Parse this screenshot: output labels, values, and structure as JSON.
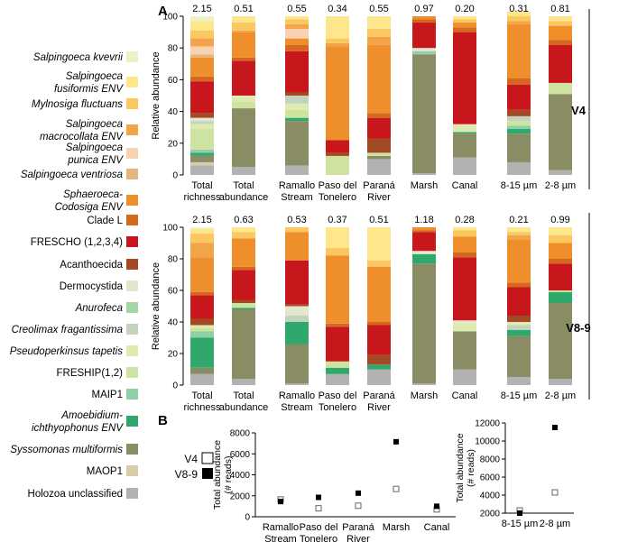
{
  "panel_labels": {
    "a": "A",
    "b": "B"
  },
  "legend": [
    {
      "label": "Salpingoeca kvevrii",
      "color": "#f0efc6",
      "italic": true
    },
    {
      "label": "Salpingoeca fusiformis ENV",
      "color": "#fde68c",
      "italic": true
    },
    {
      "label": "Mylnosiga fluctuans",
      "color": "#fbc75f",
      "italic": true
    },
    {
      "label": "Salpingoeca macrocollata ENV",
      "color": "#f3a34a",
      "italic": true
    },
    {
      "label": "Salpingoeca punica ENV",
      "color": "#f9d2b2",
      "italic": true
    },
    {
      "label": "Salpingoeca ventriosa",
      "color": "#e6b47f",
      "italic": true
    },
    {
      "label": "Sphaeroeca-Codosiga ENV",
      "color": "#ee8f2b",
      "italic": true
    },
    {
      "label": "Clade L",
      "color": "#d5681e",
      "italic": false
    },
    {
      "label": "FRESCHO (1,2,3,4)",
      "color": "#c7161c",
      "italic": false
    },
    {
      "label": "Acanthoecida",
      "color": "#a34a24",
      "italic": false
    },
    {
      "label": "Dermocystida",
      "color": "#e2e6cb",
      "italic": false
    },
    {
      "label": "Anurofeca",
      "color": "#a6d6a6",
      "italic": true
    },
    {
      "label": "Creolimax fragantissima",
      "color": "#c4d3c0",
      "italic": true
    },
    {
      "label": "Pseudoperkinsus tapetis",
      "color": "#dfeaae",
      "italic": true
    },
    {
      "label": "FRESHIP(1,2)",
      "color": "#cfe3a0",
      "italic": false
    },
    {
      "label": "MAIP1",
      "color": "#8fcfa8",
      "italic": false
    },
    {
      "label": "Amoebidium-ichthyophonus ENV",
      "color": "#2ea86b",
      "italic": true
    },
    {
      "label": "Syssomonas multiformis",
      "color": "#8a8c63",
      "italic": true
    },
    {
      "label": "MAOP1",
      "color": "#d8ccaa",
      "italic": false
    },
    {
      "label": "Holozoa unclassified",
      "color": "#b2b2b2",
      "italic": false
    }
  ],
  "chart_data": [
    {
      "type": "stacked-bar",
      "panel": "V4",
      "ylabel": "Relative abundance",
      "ylim": [
        0,
        100
      ],
      "yticks": [
        0,
        20,
        40,
        60,
        80,
        100
      ],
      "categories": [
        "Total richness",
        "Total abundance",
        "Ramallo Stream",
        "Paso del Tonelero",
        "Paraná River",
        "Marsh",
        "Canal",
        "8-15 µm",
        "2-8 µm"
      ],
      "top_values": [
        "2.15",
        "0.51",
        "0.55",
        "0.34",
        "0.55",
        "0.97",
        "0.20",
        "0.31",
        "0.81"
      ],
      "bars": [
        [
          [
            "Holozoa unclassified",
            6
          ],
          [
            "MAOP1",
            2
          ],
          [
            "Syssomonas multiformis",
            4
          ],
          [
            "Amoebidium-ichthyophonus ENV",
            2
          ],
          [
            "MAIP1",
            2
          ],
          [
            "FRESHIP(1,2)",
            13
          ],
          [
            "Pseudoperkinsus tapetis",
            3
          ],
          [
            "Creolimax fragantissima",
            2
          ],
          [
            "Dermocystida",
            2
          ],
          [
            "Acanthoecida",
            3
          ],
          [
            "FRESCHO (1,2,3,4)",
            20
          ],
          [
            "Clade L",
            3
          ],
          [
            "Sphaeroeca-Codosiga ENV",
            12
          ],
          [
            "Salpingoeca ventriosa",
            2
          ],
          [
            "Salpingoeca punica ENV",
            5
          ],
          [
            "Salpingoeca macrocollata ENV",
            5
          ],
          [
            "Mylnosiga fluctuans",
            5
          ],
          [
            "Salpingoeca fusiformis ENV",
            6
          ],
          [
            "Salpingoeca kvevrii",
            3
          ]
        ],
        [
          [
            "Holozoa unclassified",
            5
          ],
          [
            "Syssomonas multiformis",
            37
          ],
          [
            "FRESHIP(1,2)",
            4
          ],
          [
            "Pseudoperkinsus tapetis",
            3
          ],
          [
            "Dermocystida",
            1
          ],
          [
            "FRESCHO (1,2,3,4)",
            22
          ],
          [
            "Clade L",
            2
          ],
          [
            "Sphaeroeca-Codosiga ENV",
            16
          ],
          [
            "Salpingoeca macrocollata ENV",
            1
          ],
          [
            "Mylnosiga fluctuans",
            5
          ],
          [
            "Salpingoeca fusiformis ENV",
            4
          ]
        ],
        [
          [
            "Holozoa unclassified",
            6
          ],
          [
            "Syssomonas multiformis",
            28
          ],
          [
            "Amoebidium-ichthyophonus ENV",
            2
          ],
          [
            "FRESHIP(1,2)",
            5
          ],
          [
            "Pseudoperkinsus tapetis",
            4
          ],
          [
            "Creolimax fragantissima",
            5
          ],
          [
            "Acanthoecida",
            2
          ],
          [
            "FRESCHO (1,2,3,4)",
            26
          ],
          [
            "Clade L",
            4
          ],
          [
            "Sphaeroeca-Codosiga ENV",
            4
          ],
          [
            "Salpingoeca punica ENV",
            6
          ],
          [
            "Salpingoeca macrocollata ENV",
            3
          ],
          [
            "Mylnosiga fluctuans",
            3
          ],
          [
            "Salpingoeca fusiformis ENV",
            2
          ]
        ],
        [
          [
            "FRESHIP(1,2)",
            12
          ],
          [
            "Acanthoecida",
            2
          ],
          [
            "FRESCHO (1,2,3,4)",
            8
          ],
          [
            "Sphaeroeca-Codosiga ENV",
            59
          ],
          [
            "Salpingoeca macrocollata ENV",
            2
          ],
          [
            "Mylnosiga fluctuans",
            3
          ],
          [
            "Salpingoeca fusiformis ENV",
            14
          ]
        ],
        [
          [
            "Holozoa unclassified",
            10
          ],
          [
            "Syssomonas multiformis",
            2
          ],
          [
            "FRESHIP(1,2)",
            2
          ],
          [
            "Acanthoecida",
            9
          ],
          [
            "FRESCHO (1,2,3,4)",
            13
          ],
          [
            "Clade L",
            3
          ],
          [
            "Sphaeroeca-Codosiga ENV",
            43
          ],
          [
            "Salpingoeca macrocollata ENV",
            5
          ],
          [
            "Mylnosiga fluctuans",
            5
          ],
          [
            "Salpingoeca fusiformis ENV",
            8
          ]
        ],
        [
          [
            "Holozoa unclassified",
            1
          ],
          [
            "Syssomonas multiformis",
            75
          ],
          [
            "MAIP1",
            2
          ],
          [
            "Dermocystida",
            2
          ],
          [
            "FRESCHO (1,2,3,4)",
            16
          ],
          [
            "Clade L",
            2
          ],
          [
            "Sphaeroeca-Codosiga ENV",
            2
          ]
        ],
        [
          [
            "Holozoa unclassified",
            11
          ],
          [
            "Syssomonas multiformis",
            15
          ],
          [
            "Amoebidium-ichthyophonus ENV",
            1
          ],
          [
            "Pseudoperkinsus tapetis",
            4
          ],
          [
            "Dermocystida",
            1
          ],
          [
            "FRESCHO (1,2,3,4)",
            58
          ],
          [
            "Clade L",
            3
          ],
          [
            "Sphaeroeca-Codosiga ENV",
            3
          ],
          [
            "Mylnosiga fluctuans",
            2
          ],
          [
            "Salpingoeca fusiformis ENV",
            2
          ]
        ],
        [
          [
            "Holozoa unclassified",
            8
          ],
          [
            "Syssomonas multiformis",
            18
          ],
          [
            "Amoebidium-ichthyophonus ENV",
            3
          ],
          [
            "MAIP1",
            2
          ],
          [
            "FRESHIP(1,2)",
            3
          ],
          [
            "Creolimax fragantissima",
            3
          ],
          [
            "Acanthoecida",
            4
          ],
          [
            "FRESCHO (1,2,3,4)",
            16
          ],
          [
            "Clade L",
            4
          ],
          [
            "Sphaeroeca-Codosiga ENV",
            34
          ],
          [
            "Salpingoeca macrocollata ENV",
            2
          ],
          [
            "Mylnosiga fluctuans",
            3
          ],
          [
            "Salpingoeca fusiformis ENV",
            3
          ]
        ],
        [
          [
            "Holozoa unclassified",
            3
          ],
          [
            "Syssomonas multiformis",
            48
          ],
          [
            "FRESHIP(1,2)",
            7
          ],
          [
            "FRESCHO (1,2,3,4)",
            24
          ],
          [
            "Clade L",
            3
          ],
          [
            "Sphaeroeca-Codosiga ENV",
            9
          ],
          [
            "Mylnosiga fluctuans",
            3
          ],
          [
            "Salpingoeca fusiformis ENV",
            3
          ]
        ]
      ]
    },
    {
      "type": "stacked-bar",
      "panel": "V8-9",
      "ylabel": "Relative abundance",
      "ylim": [
        0,
        100
      ],
      "yticks": [
        0,
        20,
        40,
        60,
        80,
        100
      ],
      "categories": [
        "Total richness",
        "Total abundance",
        "Ramallo Stream",
        "Paso del Tonelero",
        "Paraná River",
        "Marsh",
        "Canal",
        "8-15 µm",
        "2-8 µm"
      ],
      "top_values": [
        "2.15",
        "0.63",
        "0.53",
        "0.37",
        "0.51",
        "1.18",
        "0.28",
        "0.21",
        "0.99"
      ],
      "bars": [
        [
          [
            "Holozoa unclassified",
            7
          ],
          [
            "Syssomonas multiformis",
            4
          ],
          [
            "Amoebidium-ichthyophonus ENV",
            19
          ],
          [
            "MAIP1",
            4
          ],
          [
            "FRESHIP(1,2)",
            2
          ],
          [
            "Pseudoperkinsus tapetis",
            2
          ],
          [
            "Acanthoecida",
            4
          ],
          [
            "FRESCHO (1,2,3,4)",
            15
          ],
          [
            "Clade L",
            2
          ],
          [
            "Sphaeroeca-Codosiga ENV",
            22
          ],
          [
            "Salpingoeca macrocollata ENV",
            9
          ],
          [
            "Mylnosiga fluctuans",
            6
          ],
          [
            "Salpingoeca fusiformis ENV",
            3
          ],
          [
            "Salpingoeca kvevrii",
            1
          ]
        ],
        [
          [
            "Holozoa unclassified",
            4
          ],
          [
            "Syssomonas multiformis",
            44
          ],
          [
            "Amoebidium-ichthyophonus ENV",
            1
          ],
          [
            "FRESHIP(1,2)",
            3
          ],
          [
            "Acanthoecida",
            2
          ],
          [
            "FRESCHO (1,2,3,4)",
            19
          ],
          [
            "Clade L",
            2
          ],
          [
            "Sphaeroeca-Codosiga ENV",
            18
          ],
          [
            "Mylnosiga fluctuans",
            4
          ],
          [
            "Salpingoeca fusiformis ENV",
            3
          ]
        ],
        [
          [
            "Holozoa unclassified",
            1
          ],
          [
            "Syssomonas multiformis",
            25
          ],
          [
            "Amoebidium-ichthyophonus ENV",
            14
          ],
          [
            "Creolimax fragantissima",
            4
          ],
          [
            "Dermocystida",
            6
          ],
          [
            "Acanthoecida",
            1
          ],
          [
            "FRESCHO (1,2,3,4)",
            28
          ],
          [
            "Sphaeroeca-Codosiga ENV",
            18
          ],
          [
            "Mylnosiga fluctuans",
            3
          ]
        ],
        [
          [
            "Holozoa unclassified",
            7
          ],
          [
            "Amoebidium-ichthyophonus ENV",
            4
          ],
          [
            "FRESHIP(1,2)",
            4
          ],
          [
            "FRESCHO (1,2,3,4)",
            22
          ],
          [
            "Clade L",
            2
          ],
          [
            "Sphaeroeca-Codosiga ENV",
            43
          ],
          [
            "Mylnosiga fluctuans",
            5
          ],
          [
            "Salpingoeca fusiformis ENV",
            13
          ]
        ],
        [
          [
            "Holozoa unclassified",
            10
          ],
          [
            "Amoebidium-ichthyophonus ENV",
            3
          ],
          [
            "Acanthoecida",
            6
          ],
          [
            "FRESCHO (1,2,3,4)",
            19
          ],
          [
            "Clade L",
            2
          ],
          [
            "Sphaeroeca-Codosiga ENV",
            35
          ],
          [
            "Mylnosiga fluctuans",
            4
          ],
          [
            "Salpingoeca fusiformis ENV",
            21
          ]
        ],
        [
          [
            "Holozoa unclassified",
            1
          ],
          [
            "Syssomonas multiformis",
            76
          ],
          [
            "Amoebidium-ichthyophonus ENV",
            6
          ],
          [
            "Dermocystida",
            2
          ],
          [
            "FRESCHO (1,2,3,4)",
            12
          ],
          [
            "Clade L",
            1
          ],
          [
            "Sphaeroeca-Codosiga ENV",
            2
          ]
        ],
        [
          [
            "Holozoa unclassified",
            10
          ],
          [
            "Syssomonas multiformis",
            24
          ],
          [
            "Pseudoperkinsus tapetis",
            5
          ],
          [
            "Dermocystida",
            2
          ],
          [
            "FRESCHO (1,2,3,4)",
            40
          ],
          [
            "Clade L",
            3
          ],
          [
            "Sphaeroeca-Codosiga ENV",
            10
          ],
          [
            "Mylnosiga fluctuans",
            4
          ],
          [
            "Salpingoeca fusiformis ENV",
            2
          ]
        ],
        [
          [
            "Holozoa unclassified",
            5
          ],
          [
            "Syssomonas multiformis",
            26
          ],
          [
            "Amoebidium-ichthyophonus ENV",
            4
          ],
          [
            "Creolimax fragantissima",
            3
          ],
          [
            "Pseudoperkinsus tapetis",
            2
          ],
          [
            "Acanthoecida",
            4
          ],
          [
            "FRESCHO (1,2,3,4)",
            18
          ],
          [
            "Clade L",
            3
          ],
          [
            "Sphaeroeca-Codosiga ENV",
            27
          ],
          [
            "Salpingoeca macrocollata ENV",
            3
          ],
          [
            "Mylnosiga fluctuans",
            2
          ],
          [
            "Salpingoeca fusiformis ENV",
            3
          ]
        ],
        [
          [
            "Holozoa unclassified",
            4
          ],
          [
            "Syssomonas multiformis",
            48
          ],
          [
            "Amoebidium-ichthyophonus ENV",
            7
          ],
          [
            "FRESHIP(1,2)",
            1
          ],
          [
            "FRESCHO (1,2,3,4)",
            17
          ],
          [
            "Clade L",
            3
          ],
          [
            "Sphaeroeca-Codosiga ENV",
            10
          ],
          [
            "Mylnosiga fluctuans",
            5
          ],
          [
            "Salpingoeca fusiformis ENV",
            5
          ]
        ]
      ]
    },
    {
      "type": "scatter",
      "panel": "B-left",
      "ylabel": "Total abundance (# reads)",
      "ylim": [
        0,
        8000
      ],
      "yticks": [
        0,
        2000,
        4000,
        6000,
        8000
      ],
      "categories": [
        "Ramallo Stream",
        "Paso del Tonelero",
        "Paraná River",
        "Marsh",
        "Canal"
      ],
      "series": [
        {
          "name": "V4",
          "style": "open",
          "values": [
            1650,
            800,
            1050,
            2650,
            700
          ]
        },
        {
          "name": "V8-9",
          "style": "filled",
          "values": [
            1450,
            1850,
            2250,
            7150,
            1000
          ]
        }
      ]
    },
    {
      "type": "scatter",
      "panel": "B-right",
      "ylabel": "Total abundance (# reads)",
      "ylim": [
        2000,
        12000
      ],
      "yticks": [
        2000,
        4000,
        6000,
        8000,
        10000,
        12000
      ],
      "categories": [
        "8-15 µm",
        "2-8 µm"
      ],
      "series": [
        {
          "name": "V4",
          "style": "open",
          "values": [
            2300,
            4300
          ]
        },
        {
          "name": "V8-9",
          "style": "filled",
          "values": [
            2000,
            11500
          ]
        }
      ]
    }
  ],
  "b_legend": [
    {
      "label": "V4",
      "style": "open"
    },
    {
      "label": "V8-9",
      "style": "filled"
    }
  ]
}
